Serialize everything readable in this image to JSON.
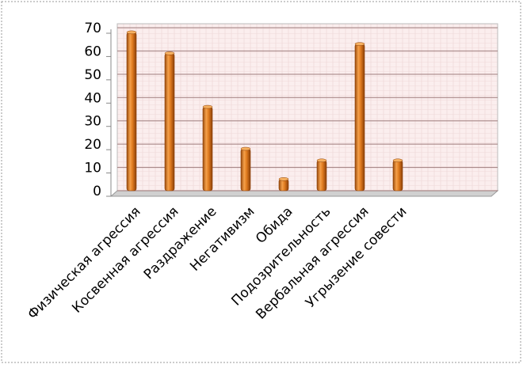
{
  "chart_data": {
    "type": "bar",
    "categories": [
      "Физическая агрессия",
      "Косвенная агрессия",
      "Раздражение",
      "Негативизм",
      "Обида",
      "Подозрительность",
      "Вербальная агрессия",
      "Угрызение совести",
      null,
      null
    ],
    "values": [
      68,
      59,
      36,
      18,
      5,
      13,
      63,
      13,
      null,
      null
    ],
    "color": "#e07b1f",
    "ylim": [
      0,
      70
    ],
    "yticks": [
      0,
      10,
      20,
      30,
      40,
      50,
      60,
      70
    ],
    "grid": true
  }
}
